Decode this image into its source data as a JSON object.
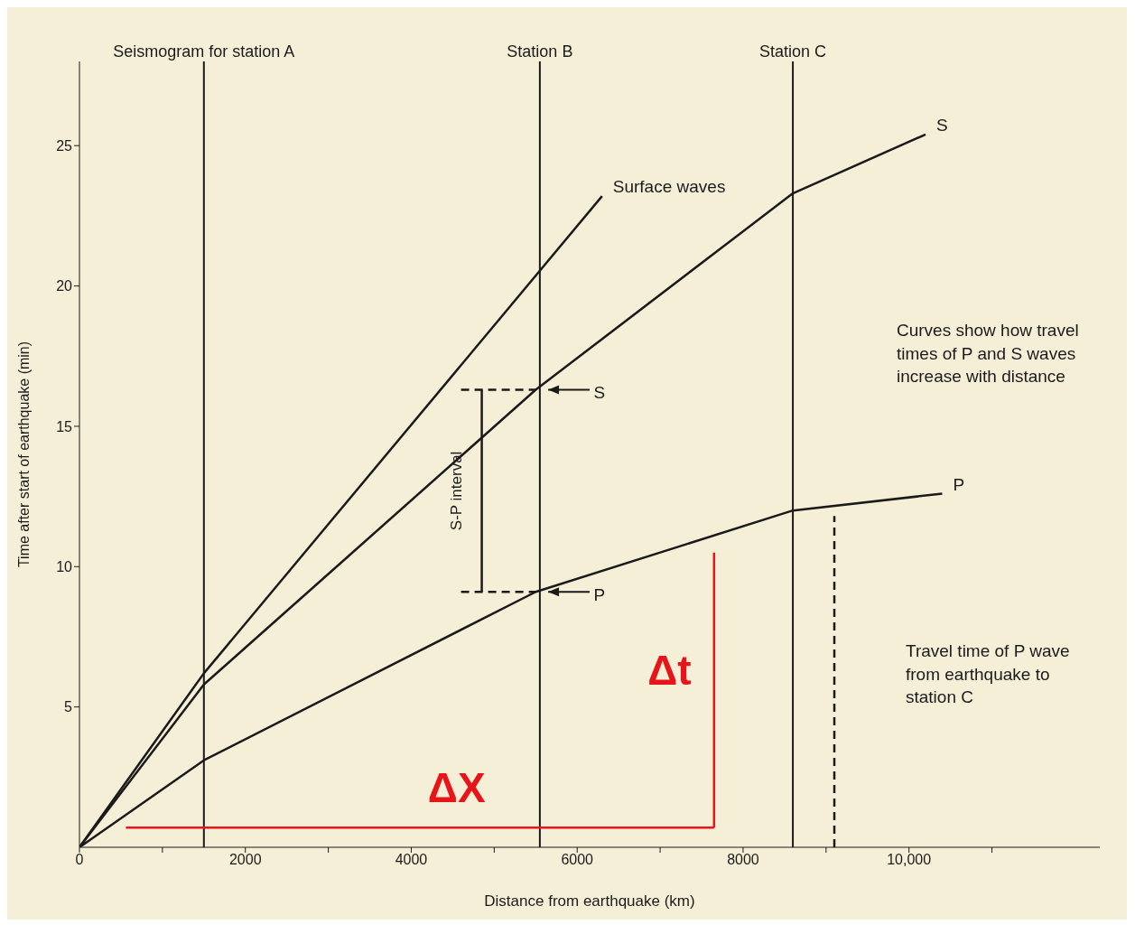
{
  "chart_data": {
    "type": "line",
    "xlabel": "Distance from earthquake (km)",
    "ylabel": "Time after start of earthquake (min)",
    "xlim": [
      0,
      12300
    ],
    "ylim": [
      0,
      28
    ],
    "xticks": [
      0,
      {
        "value": 1000,
        "label": null
      },
      2000,
      {
        "value": 3000,
        "label": null
      },
      4000,
      {
        "value": 5000,
        "label": null
      },
      6000,
      {
        "value": 7000,
        "label": null
      },
      8000,
      {
        "value": 9000,
        "label": null
      },
      {
        "value": 10000,
        "label": "10,000"
      },
      {
        "value": 11000,
        "label": null
      }
    ],
    "yticks": [
      5,
      10,
      15,
      20,
      25
    ],
    "grid": false,
    "legend": false,
    "marker": "none",
    "line_style": "solid",
    "series": [
      {
        "name": "Surface waves",
        "color": "#1a1a1a",
        "x": [
          0,
          1500,
          6300
        ],
        "values": [
          0,
          6.2,
          23.2
        ]
      },
      {
        "name": "S",
        "color": "#1a1a1a",
        "x": [
          0,
          1500,
          5500,
          8600,
          10200
        ],
        "values": [
          0,
          5.8,
          16.3,
          23.3,
          25.4
        ]
      },
      {
        "name": "P",
        "color": "#1a1a1a",
        "x": [
          0,
          1500,
          5500,
          8600,
          10400
        ],
        "values": [
          0,
          3.1,
          9.1,
          12.0,
          12.6
        ]
      },
      {
        "color": "#e8141a",
        "x": [
          560,
          7650
        ],
        "values": [
          0.7,
          0.7
        ]
      },
      {
        "color": "#e8141a",
        "x": [
          7650,
          7650
        ],
        "values": [
          0.7,
          10.5
        ]
      },
      {
        "color": "#1a1a1a",
        "line_style": "dashed",
        "x": [
          4600,
          5500
        ],
        "values": [
          16.3,
          16.3
        ]
      },
      {
        "color": "#1a1a1a",
        "line_style": "dashed",
        "x": [
          4600,
          5500
        ],
        "values": [
          9.1,
          9.1
        ]
      },
      {
        "color": "#1a1a1a",
        "x": [
          4850,
          4850
        ],
        "values": [
          9.1,
          16.3
        ]
      },
      {
        "color": "#1a1a1a",
        "line_style": "dashed",
        "x": [
          9100,
          9100
        ],
        "values": [
          0,
          11.8
        ]
      }
    ],
    "ref_lines": [
      {
        "axis": "x",
        "value": 1500,
        "label": "Seismogram for station A",
        "color": "#1a1a1a"
      },
      {
        "axis": "x",
        "value": 5550,
        "label": "Station B",
        "color": "#1a1a1a"
      },
      {
        "axis": "x",
        "value": 8600,
        "label": "Station C",
        "color": "#1a1a1a"
      }
    ],
    "annotations": [
      "S-P interval",
      "S",
      "P",
      "ΔX",
      "Δt",
      "Curves show how travel times of P and S waves increase with distance",
      "Travel time of P wave from earthquake to station C"
    ]
  }
}
